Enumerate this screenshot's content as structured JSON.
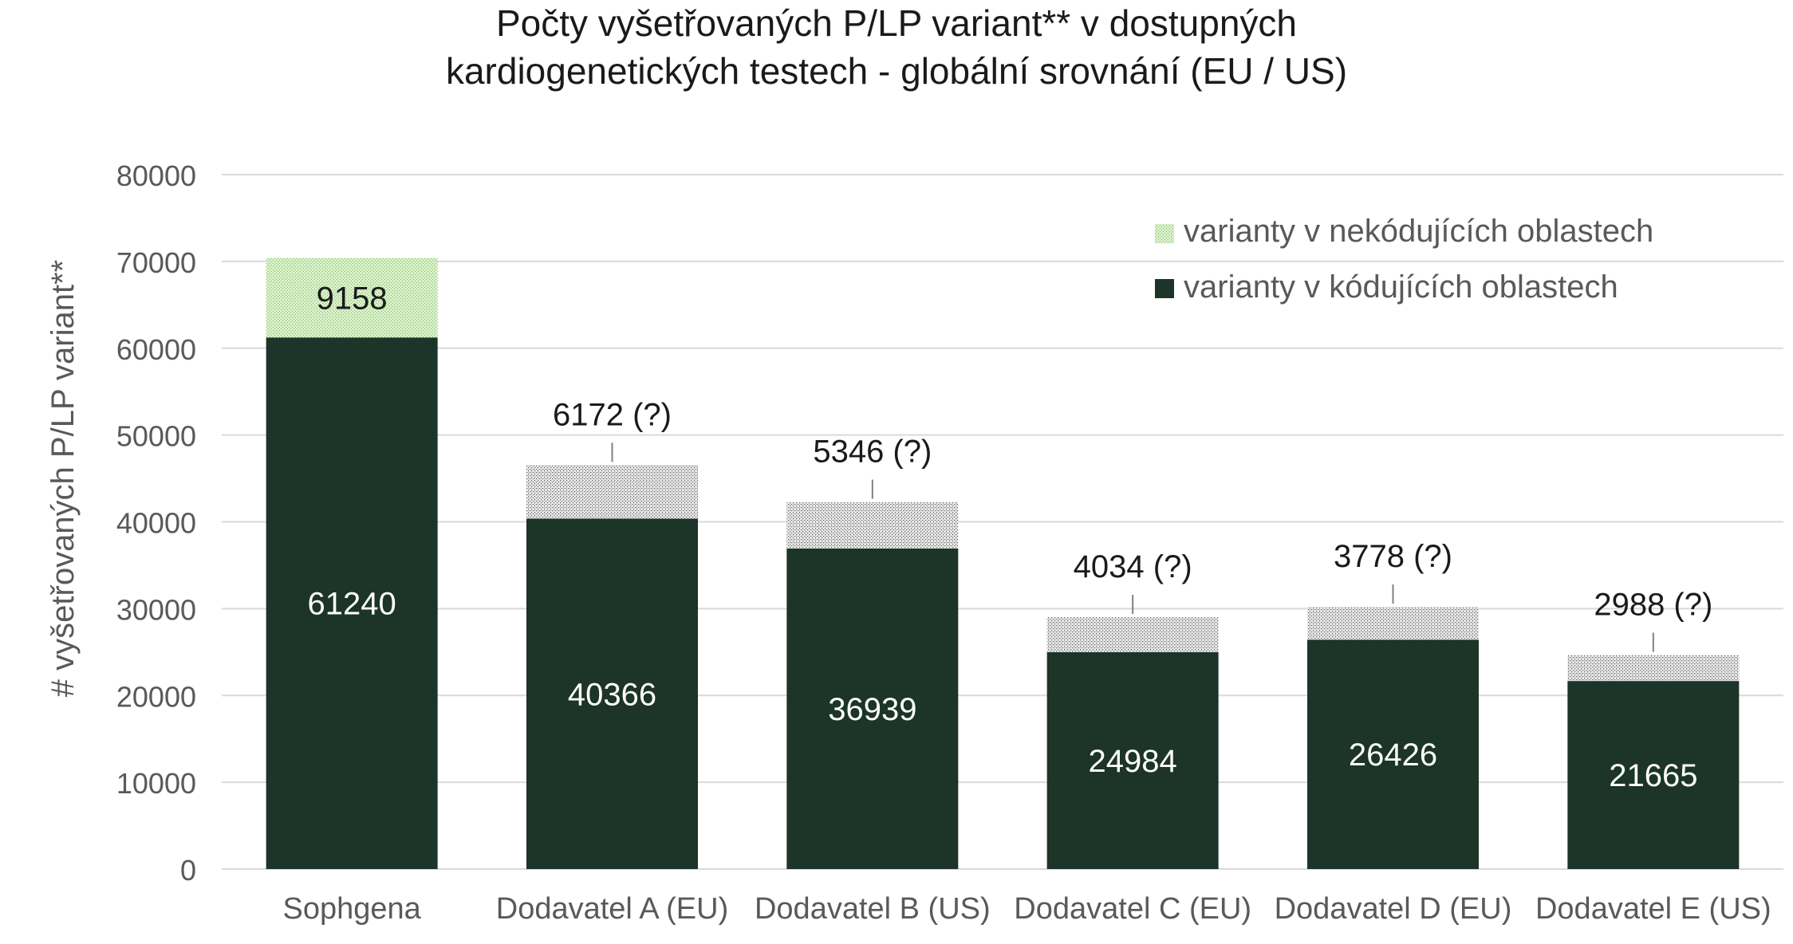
{
  "chart_data": {
    "type": "bar",
    "stacked": true,
    "title_line1": "Počty vyšetřovaných P/LP variant** v dostupných",
    "title_line2": "kardiogenetických testech - globální srovnání (EU / US)",
    "xlabel": "",
    "ylabel": "# vyšetřovaných P/LP variant**",
    "ylim": [
      0,
      80000
    ],
    "yticks": [
      0,
      10000,
      20000,
      30000,
      40000,
      50000,
      60000,
      70000,
      80000
    ],
    "grid": true,
    "legend_position": "top-right",
    "categories": [
      "Sophgena",
      "Dodavatel A (EU)",
      "Dodavatel B (US)",
      "Dodavatel C (EU)",
      "Dodavatel D (EU)",
      "Dodavatel E (US)"
    ],
    "series": [
      {
        "name": "varianty v kódujících oblastech",
        "color": "#1d3428",
        "values": [
          61240,
          40366,
          36939,
          24984,
          26426,
          21665
        ]
      },
      {
        "name": "varianty v nekódujících oblastech",
        "color": "#b8dca6",
        "values": [
          9158,
          6172,
          5346,
          4034,
          3778,
          2988
        ]
      }
    ],
    "data_labels_top": [
      "9158",
      "6172 (?)",
      "5346 (?)",
      "4034 (?)",
      "3778 (?)",
      "2988 (?)"
    ],
    "data_labels_bottom": [
      "61240",
      "40366",
      "36939",
      "24984",
      "26426",
      "21665"
    ],
    "legend_order": [
      "varianty v nekódujících oblastech",
      "varianty v kódujících oblastech"
    ]
  },
  "colors": {
    "coding": "#1d3428",
    "noncoding_first": "#b8dca6",
    "noncoding_other": "#9a9a9a",
    "grid": "#d9d9d9",
    "axis_text": "#595959",
    "label_dark": "#1a1a1a",
    "label_light": "#ffffff"
  }
}
